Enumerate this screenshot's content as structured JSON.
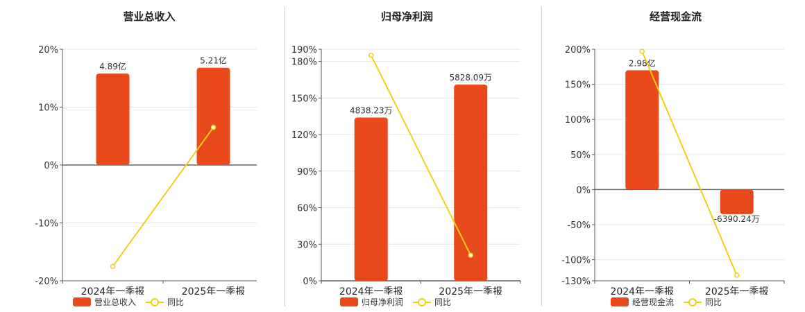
{
  "colors": {
    "bar": "#e84a1c",
    "line": "#f2cf17",
    "axis": "#555555",
    "grid": "#e6e6e6",
    "zero": "#666666"
  },
  "legend": {
    "line_label": "同比"
  },
  "chart_data": [
    {
      "type": "bar",
      "title": "营业总收入",
      "categories": [
        "2024年一季报",
        "2025年一季报"
      ],
      "series": [
        {
          "name": "营业总收入",
          "type": "bar",
          "values": [
            15.8,
            16.8
          ],
          "labels": [
            "4.89亿",
            "5.21亿"
          ]
        },
        {
          "name": "同比",
          "type": "line",
          "values": [
            -17.5,
            6.5
          ]
        }
      ],
      "yticks": [
        "20%",
        "10%",
        "0%",
        "-10%",
        "-20%"
      ],
      "ylim": [
        -20,
        20
      ]
    },
    {
      "type": "bar",
      "title": "归母净利润",
      "categories": [
        "2024年一季报",
        "2025年一季报"
      ],
      "series": [
        {
          "name": "归母净利润",
          "type": "bar",
          "values": [
            134,
            161
          ],
          "labels": [
            "4838.23万",
            "5828.09万"
          ]
        },
        {
          "name": "同比",
          "type": "line",
          "values": [
            185,
            21
          ]
        }
      ],
      "yticks": [
        "190%",
        "180%",
        "150%",
        "120%",
        "90%",
        "60%",
        "30%",
        "0%"
      ],
      "ylim": [
        0,
        190
      ]
    },
    {
      "type": "bar",
      "title": "经营现金流",
      "categories": [
        "2024年一季报",
        "2025年一季报"
      ],
      "series": [
        {
          "name": "经营现金流",
          "type": "bar",
          "values": [
            170,
            -35
          ],
          "labels": [
            "2.98亿",
            "-6390.24万"
          ]
        },
        {
          "name": "同比",
          "type": "line",
          "values": [
            197,
            -122
          ]
        }
      ],
      "yticks": [
        "200%",
        "150%",
        "100%",
        "50%",
        "0%",
        "-50%",
        "-100%",
        "-130%"
      ],
      "ylim": [
        -130,
        200
      ]
    }
  ]
}
